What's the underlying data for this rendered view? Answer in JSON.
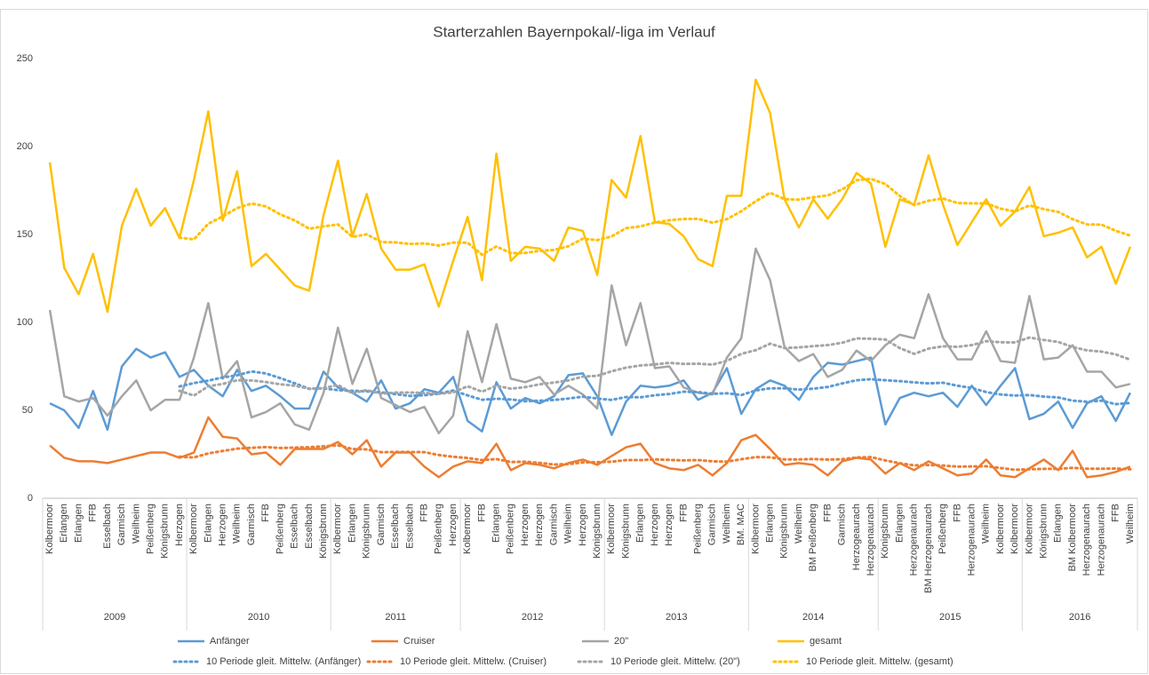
{
  "chart_data": {
    "type": "line",
    "title": "Starterzahlen Bayernpokal/-liga im Verlauf",
    "categories": [
      "Kolbermoor",
      "Erlangen",
      "Erlangen",
      "FFB",
      "Esselbach",
      "Garmisch",
      "Weilheim",
      "Peißenberg",
      "Königsbrunn",
      "Herzogen",
      "Kolbermoor",
      "Erlangen",
      "Herzogen",
      "Weilheim",
      "Garmisch",
      "FFB",
      "Peißenberg",
      "Esselbach",
      "Esselbach",
      "Königsbrunn",
      "Kolbermoor",
      "Erlangen",
      "Königsbrunn",
      "Garmisch",
      "Esselbach",
      "Esselbach",
      "FFB",
      "Peißenberg",
      "Herzogen",
      "Kolbermoor",
      "FFB",
      "Erlangen",
      "Peißenberg",
      "Herzogen",
      "Herzogen",
      "Garmisch",
      "Weilheim",
      "Herzogen",
      "Königsbrunn",
      "Kolbermoor",
      "Königsbrunn",
      "Erlangen",
      "Herzogen",
      "Herzogen",
      "FFB",
      "Peißenberg",
      "Garmisch",
      "Weilheim",
      "BM. MAC",
      "Kolbermoor",
      "Erlangen",
      "Königsbrunn",
      "Weilheim",
      "BM Peißenberg",
      "FFB",
      "Garmisch",
      "Herzogeaurach",
      "Herzogenaurach",
      "Königsbrunn",
      "Erlangen",
      "Herzogenaurach",
      "BM Herzogenaurach",
      "Peißenberg",
      "FFB",
      "Herzogenaurach",
      "Weilheim",
      "Kolbermoor",
      "Kolbermoor",
      "Kolbermoor",
      "Königsbrunn",
      "Erlangen",
      "BM Kolbermoor",
      "Herzogenaurach",
      "Herzogenaurach",
      "FFB",
      "Weilheim"
    ],
    "category_groups": [
      {
        "name": "2009",
        "size": 10
      },
      {
        "name": "2010",
        "size": 10
      },
      {
        "name": "2011",
        "size": 9
      },
      {
        "name": "2012",
        "size": 10
      },
      {
        "name": "2013",
        "size": 10
      },
      {
        "name": "2014",
        "size": 9
      },
      {
        "name": "2015",
        "size": 10
      },
      {
        "name": "2016",
        "size": 8
      }
    ],
    "series": [
      {
        "name": "Anfänger",
        "color": "#5b9bd5",
        "values": [
          54,
          50,
          40,
          61,
          39,
          75,
          85,
          80,
          83,
          69,
          73,
          64,
          58,
          73,
          61,
          64,
          58,
          51,
          51,
          72,
          63,
          60,
          55,
          67,
          51,
          54,
          62,
          60,
          69,
          44,
          38,
          66,
          51,
          57,
          54,
          58,
          70,
          71,
          58,
          36,
          55,
          64,
          63,
          64,
          67,
          56,
          60,
          74,
          48,
          62,
          67,
          64,
          56,
          69,
          77,
          76,
          78,
          80,
          42,
          57,
          60,
          58,
          60,
          52,
          64,
          53,
          64,
          74,
          45,
          48,
          55,
          40,
          54,
          58,
          44,
          60
        ]
      },
      {
        "name": "Cruiser",
        "color": "#ed7d31",
        "values": [
          30,
          23,
          21,
          21,
          20,
          22,
          24,
          26,
          26,
          23,
          26,
          46,
          35,
          34,
          25,
          26,
          19,
          28,
          28,
          28,
          32,
          25,
          33,
          18,
          26,
          26,
          18,
          12,
          18,
          21,
          20,
          31,
          16,
          20,
          19,
          17,
          20,
          22,
          19,
          24,
          29,
          31,
          20,
          17,
          16,
          19,
          13,
          20,
          33,
          36,
          28,
          19,
          20,
          19,
          13,
          21,
          23,
          22,
          14,
          20,
          16,
          21,
          17,
          13,
          14,
          22,
          13,
          12,
          17,
          22,
          16,
          27,
          12,
          13,
          15,
          18
        ]
      },
      {
        "name": "20\"",
        "color": "#a5a5a5",
        "values": [
          107,
          58,
          55,
          57,
          47,
          58,
          67,
          50,
          56,
          56,
          80,
          111,
          68,
          78,
          46,
          49,
          54,
          42,
          39,
          60,
          97,
          65,
          85,
          57,
          53,
          49,
          52,
          37,
          47,
          95,
          66,
          99,
          68,
          66,
          69,
          59,
          64,
          59,
          51,
          121,
          87,
          111,
          74,
          75,
          63,
          60,
          59,
          80,
          91,
          142,
          124,
          86,
          78,
          82,
          69,
          73,
          84,
          78,
          87,
          93,
          91,
          116,
          91,
          79,
          79,
          95,
          78,
          77,
          115,
          79,
          80,
          87,
          72,
          72,
          63,
          65
        ]
      },
      {
        "name": "gesamt",
        "color": "#ffc000",
        "values": [
          191,
          131,
          116,
          139,
          106,
          155,
          176,
          155,
          165,
          148,
          181,
          220,
          158,
          186,
          132,
          139,
          130,
          121,
          118,
          161,
          192,
          149,
          173,
          142,
          130,
          130,
          133,
          109,
          135,
          160,
          124,
          196,
          135,
          143,
          142,
          135,
          154,
          152,
          127,
          181,
          171,
          206,
          157,
          156,
          149,
          136,
          132,
          172,
          172,
          238,
          219,
          170,
          154,
          170,
          159,
          170,
          185,
          179,
          143,
          170,
          167,
          195,
          167,
          144,
          157,
          170,
          155,
          163,
          177,
          149,
          151,
          154,
          137,
          143,
          122,
          143
        ]
      }
    ],
    "trendlines": [
      {
        "name": "10 Periode gleit. Mittelw. (Anfänger)",
        "series": 0,
        "period": 10
      },
      {
        "name": "10 Periode gleit. Mittelw. (Cruiser)",
        "series": 1,
        "period": 10
      },
      {
        "name": "10 Periode gleit. Mittelw. (20\")",
        "series": 2,
        "period": 10
      },
      {
        "name": "10 Periode gleit. Mittelw. (gesamt)",
        "series": 3,
        "period": 10
      }
    ],
    "ylim": [
      0,
      250
    ],
    "yticks": [
      0,
      50,
      100,
      150,
      200,
      250
    ],
    "grid": false
  }
}
